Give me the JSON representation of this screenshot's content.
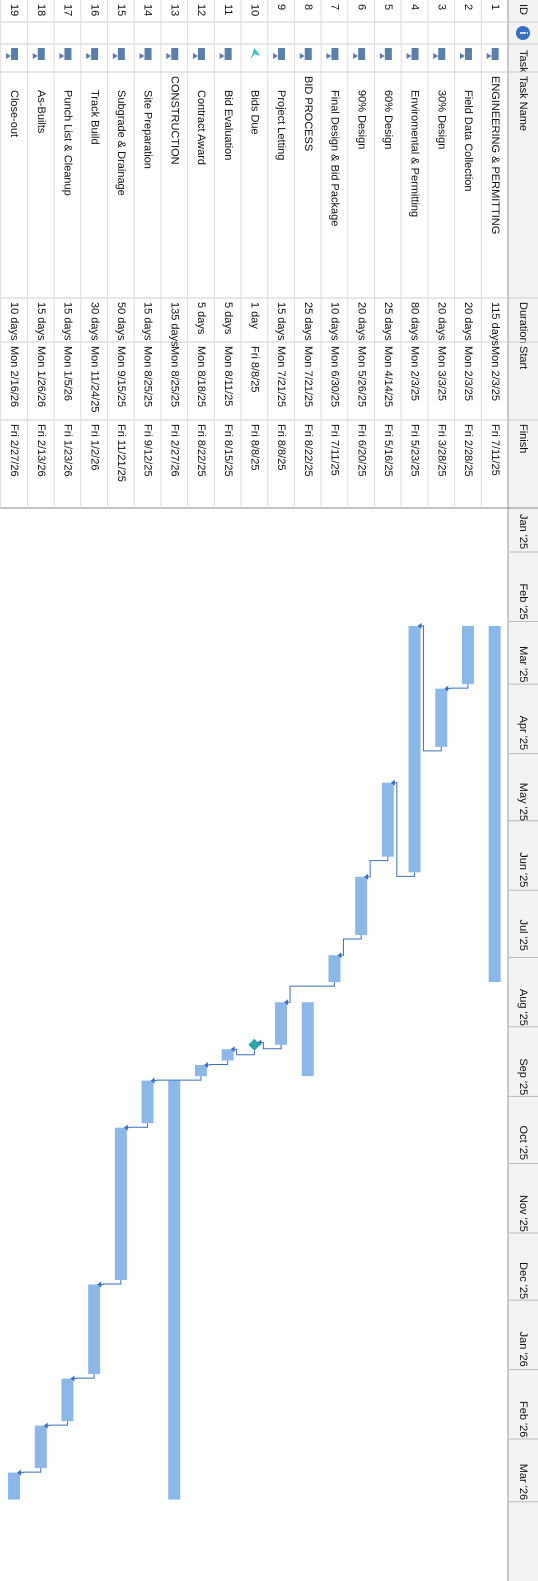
{
  "header": {
    "id": "ID",
    "mode": "Task",
    "name": "Task Name",
    "duration": "Duration",
    "start": "Start",
    "finish": "Finish"
  },
  "timescale": [
    "Jan '25",
    "Feb '25",
    "Mar '25",
    "Apr '25",
    "May '25",
    "Jun '25",
    "Jul '25",
    "Aug '25",
    "Sep '25",
    "Oct '25",
    "Nov '25",
    "Dec '25",
    "Jan '26",
    "Feb '26",
    "Mar '26"
  ],
  "tasks": [
    {
      "id": "1",
      "name": "ENGINEERING & PERMITTING",
      "duration": "115 days",
      "start": "Mon 2/3/25",
      "finish": "Fri 7/11/25",
      "level": 0
    },
    {
      "id": "2",
      "name": "Field Data Collection",
      "duration": "20 days",
      "start": "Mon 2/3/25",
      "finish": "Fri 2/28/25",
      "level": 1
    },
    {
      "id": "3",
      "name": "30% Design",
      "duration": "20 days",
      "start": "Mon 3/3/25",
      "finish": "Fri 3/28/25",
      "level": 1
    },
    {
      "id": "4",
      "name": "Enviromental & Permitting",
      "duration": "80 days",
      "start": "Mon 2/3/25",
      "finish": "Fri 5/23/25",
      "level": 1
    },
    {
      "id": "5",
      "name": "60% Design",
      "duration": "25 days",
      "start": "Mon 4/14/25",
      "finish": "Fri 5/16/25",
      "level": 1
    },
    {
      "id": "6",
      "name": "90% Design",
      "duration": "20 days",
      "start": "Mon 5/26/25",
      "finish": "Fri 6/20/25",
      "level": 1
    },
    {
      "id": "7",
      "name": "Final Design & Bid Package",
      "duration": "10 days",
      "start": "Mon 6/30/25",
      "finish": "Fri 7/11/25",
      "level": 1
    },
    {
      "id": "8",
      "name": "BID PROCESS",
      "duration": "25 days",
      "start": "Mon 7/21/25",
      "finish": "Fri 8/22/25",
      "level": 0
    },
    {
      "id": "9",
      "name": "Project Letting",
      "duration": "15 days",
      "start": "Mon 7/21/25",
      "finish": "Fri 8/8/25",
      "level": 1
    },
    {
      "id": "10",
      "name": "Bids Due",
      "duration": "1 day",
      "start": "Fri 8/8/25",
      "finish": "Fri 8/8/25",
      "level": 1,
      "milestone": true
    },
    {
      "id": "11",
      "name": "Bid Evaluation",
      "duration": "5 days",
      "start": "Mon 8/11/25",
      "finish": "Fri 8/15/25",
      "level": 1
    },
    {
      "id": "12",
      "name": "Contract Award",
      "duration": "5 days",
      "start": "Mon 8/18/25",
      "finish": "Fri 8/22/25",
      "level": 1
    },
    {
      "id": "13",
      "name": "CONSTRUCTION",
      "duration": "135 days",
      "start": "Mon 8/25/25",
      "finish": "Fri 2/27/26",
      "level": 0
    },
    {
      "id": "14",
      "name": "Site Preparation",
      "duration": "15 days",
      "start": "Mon 8/25/25",
      "finish": "Fri 9/12/25",
      "level": 1
    },
    {
      "id": "15",
      "name": "Subgrade & Drainage",
      "duration": "50 days",
      "start": "Mon 9/15/25",
      "finish": "Fri 11/21/25",
      "level": 1
    },
    {
      "id": "16",
      "name": "Track Build",
      "duration": "30 days",
      "start": "Mon 11/24/25",
      "finish": "Fri 1/2/26",
      "level": 1
    },
    {
      "id": "17",
      "name": "Punch List & Cleanup",
      "duration": "15 days",
      "start": "Mon 1/5/26",
      "finish": "Fri 1/23/26",
      "level": 1
    },
    {
      "id": "18",
      "name": "As-Builts",
      "duration": "15 days",
      "start": "Mon 1/26/26",
      "finish": "Fri 2/13/26",
      "level": 1
    },
    {
      "id": "19",
      "name": "Close-out",
      "duration": "10 days",
      "start": "Mon 2/16/26",
      "finish": "Fri 2/27/26",
      "level": 1
    }
  ]
}
